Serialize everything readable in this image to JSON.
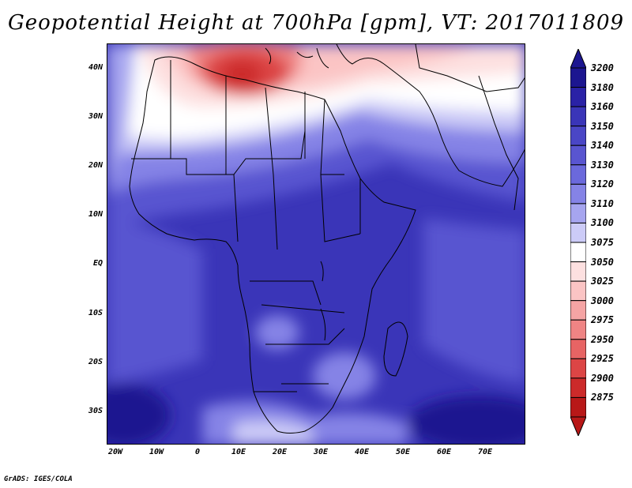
{
  "title": "Geopotential Height at 700hPa [gpm], VT: 2017011809",
  "credit": "GrADS: IGES/COLA",
  "axes": {
    "lat_labels": [
      "40N",
      "30N",
      "20N",
      "10N",
      "EQ",
      "10S",
      "20S",
      "30S"
    ],
    "lon_labels": [
      "20W",
      "10W",
      "0",
      "10E",
      "20E",
      "30E",
      "40E",
      "50E",
      "60E",
      "70E"
    ]
  },
  "legend": {
    "levels": [
      "3200",
      "3180",
      "3160",
      "3150",
      "3140",
      "3130",
      "3120",
      "3110",
      "3100",
      "3075",
      "3050",
      "3025",
      "3000",
      "2975",
      "2950",
      "2925",
      "2900",
      "2875"
    ],
    "colors": [
      "#1c1690",
      "#2a22a6",
      "#3a35b8",
      "#4a46c6",
      "#5955d0",
      "#6b69dc",
      "#8583e6",
      "#a6a5ef",
      "#cccbf7",
      "#ffffff",
      "#fde0e0",
      "#fbc4c4",
      "#f5a4a4",
      "#ef8484",
      "#e76464",
      "#dc4545",
      "#cc2a2a",
      "#b81818"
    ]
  }
}
